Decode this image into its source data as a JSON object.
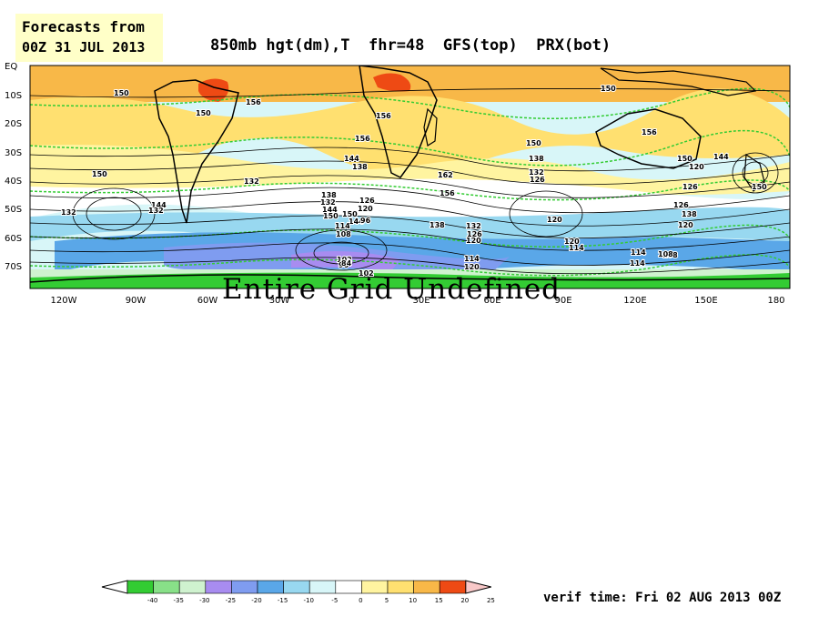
{
  "forecast_box": {
    "line1": "Forecasts from",
    "line2": "00Z 31 JUL 2013"
  },
  "title": "850mb hgt(dm),T  fhr=48  GFS(top)  PRX(bot)",
  "map": {
    "lat_labels": [
      "EQ",
      "10S",
      "20S",
      "30S",
      "40S",
      "50S",
      "60S",
      "70S"
    ],
    "lon_labels": [
      "120W",
      "90W",
      "60W",
      "30W",
      "0",
      "30E",
      "60E",
      "90E",
      "120E",
      "150E",
      "180"
    ],
    "contour_labels": [
      "150",
      "150",
      "156",
      "156",
      "156",
      "150",
      "156",
      "150",
      "150",
      "144",
      "138",
      "132",
      "162",
      "156",
      "150",
      "144",
      "138",
      "132",
      "144",
      "150",
      "126",
      "120",
      "114",
      "108",
      "102",
      "96",
      "138",
      "132",
      "126",
      "120",
      "114",
      "138",
      "126",
      "120",
      "114",
      "108",
      "120",
      "114",
      "120",
      "114",
      "108",
      "144",
      "138",
      "132",
      "126",
      "120",
      "90",
      "84",
      "102",
      "132",
      "132",
      "126",
      "120",
      "150",
      "144",
      "150"
    ],
    "undefined_message": "Entire Grid Undefined"
  },
  "colorbar": {
    "labels": [
      "-40",
      "-35",
      "-30",
      "-25",
      "-20",
      "-15",
      "-10",
      "-5",
      "0",
      "5",
      "10",
      "15",
      "20",
      "25"
    ],
    "colors": [
      "#33cc33",
      "#88e088",
      "#cff2cf",
      "#a88cf0",
      "#7f9cf0",
      "#5aa7e8",
      "#98d8f0",
      "#d8f6f8",
      "#ffffff",
      "#fff4a0",
      "#ffe070",
      "#f8b848",
      "#ee4a14"
    ]
  },
  "verif_time": "verif time: Fri 02 AUG 2013 00Z"
}
